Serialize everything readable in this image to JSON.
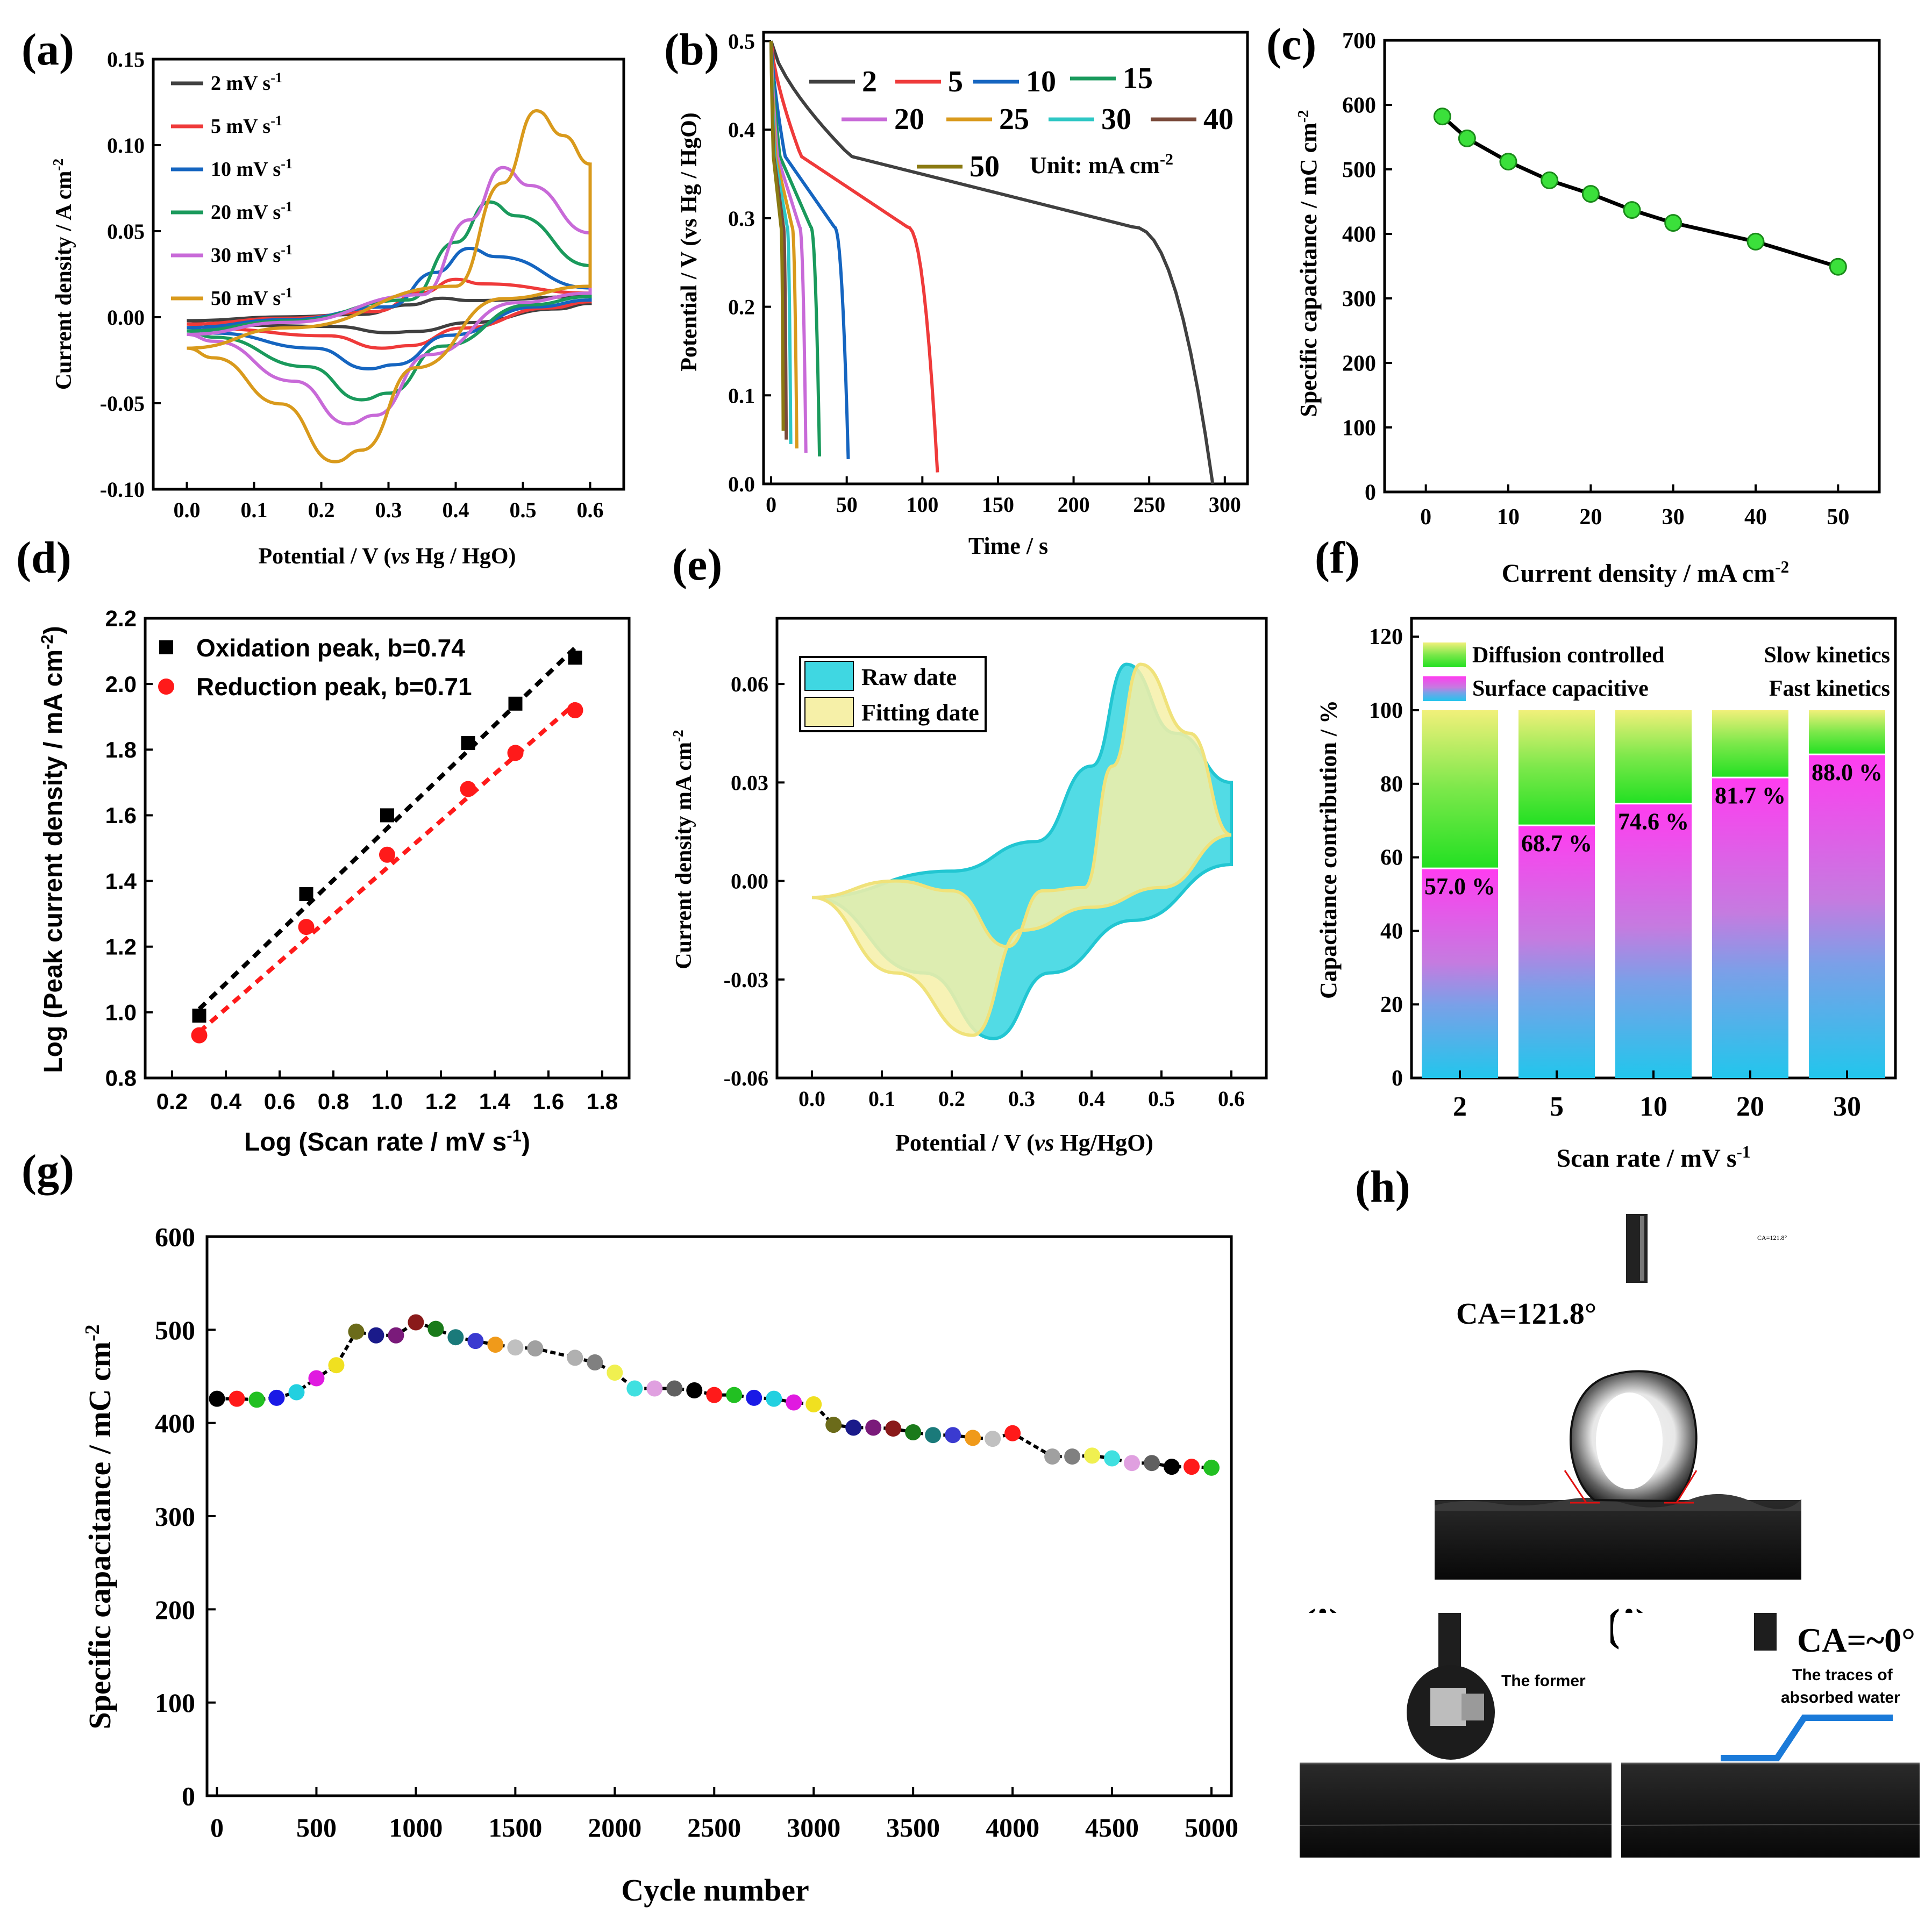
{
  "figure": {
    "panel_labels": [
      "(a)",
      "(b)",
      "(c)",
      "(d)",
      "(e)",
      "(f)",
      "(g)",
      "(h)",
      "(i)",
      "(j)"
    ]
  },
  "chart_data": [
    {
      "id": "a",
      "type": "line",
      "title": "",
      "xlabel_parts": [
        "Potential / V (",
        "vs",
        " Hg / HgO)"
      ],
      "ylabel": "Current density / A cm",
      "ylabel_sup": "-2",
      "xlim": [
        -0.05,
        0.65
      ],
      "ylim": [
        -0.1,
        0.15
      ],
      "xticks": [
        "0.0",
        "0.1",
        "0.2",
        "0.3",
        "0.4",
        "0.5",
        "0.6"
      ],
      "xtick_values": [
        0,
        0.1,
        0.2,
        0.3,
        0.4,
        0.5,
        0.6
      ],
      "yticks": [
        "-0.10",
        "-0.05",
        "0.00",
        "0.05",
        "0.10",
        "0.15"
      ],
      "ytick_values": [
        -0.1,
        -0.05,
        0.0,
        0.05,
        0.1,
        0.15
      ],
      "legend_position": "top-left",
      "unit_suffix": " mV s",
      "unit_sup": "-1",
      "series": [
        {
          "name": "2",
          "color": "#404040",
          "ox_peak": [
            0.38,
            0.011
          ],
          "red_peak": [
            0.3,
            -0.009
          ],
          "end_upper": 0.012,
          "end_lower": 0.008,
          "start": -0.002
        },
        {
          "name": "5",
          "color": "#ef3a3a",
          "ox_peak": [
            0.4,
            0.022
          ],
          "red_peak": [
            0.29,
            -0.018
          ],
          "end_upper": 0.014,
          "end_lower": 0.009,
          "start": -0.004
        },
        {
          "name": "10",
          "color": "#1565c0",
          "ox_peak": [
            0.42,
            0.04
          ],
          "red_peak": [
            0.27,
            -0.03
          ],
          "end_upper": 0.017,
          "end_lower": 0.01,
          "start": -0.006
        },
        {
          "name": "20",
          "color": "#1a9a5c",
          "ox_peak": [
            0.45,
            0.067
          ],
          "red_peak": [
            0.26,
            -0.048
          ],
          "end_upper": 0.03,
          "end_lower": 0.012,
          "start": -0.008
        },
        {
          "name": "30",
          "color": "#c86ad8",
          "ox_peak": [
            0.47,
            0.087
          ],
          "red_peak": [
            0.24,
            -0.062
          ],
          "end_upper": 0.049,
          "end_lower": 0.014,
          "start": -0.01
        },
        {
          "name": "50",
          "color": "#d99a1c",
          "ox_peak": [
            0.52,
            0.12
          ],
          "red_peak": [
            0.22,
            -0.084
          ],
          "end_upper": 0.089,
          "end_lower": 0.018,
          "start": -0.018
        }
      ]
    },
    {
      "id": "b",
      "type": "line",
      "xlabel": "Time / s",
      "ylabel": "Potential  / V (vs Hg / HgO)",
      "xlim": [
        -5,
        315
      ],
      "ylim": [
        0,
        0.51
      ],
      "xticks": [
        "0",
        "50",
        "100",
        "150",
        "200",
        "250",
        "300"
      ],
      "xtick_values": [
        0,
        50,
        100,
        150,
        200,
        250,
        300
      ],
      "yticks": [
        "0.0",
        "0.1",
        "0.2",
        "0.3",
        "0.4",
        "0.5"
      ],
      "ytick_values": [
        0,
        0.1,
        0.2,
        0.3,
        0.4,
        0.5
      ],
      "unit_note": "Unit: mA cm",
      "unit_note_sup": "-2",
      "legend_position": "top",
      "series": [
        {
          "name": "2",
          "color": "#404040",
          "end_time": 292,
          "end_v": 0.0
        },
        {
          "name": "5",
          "color": "#ef3a3a",
          "end_time": 110,
          "end_v": 0.013
        },
        {
          "name": "10",
          "color": "#1565c0",
          "end_time": 51,
          "end_v": 0.028
        },
        {
          "name": "15",
          "color": "#1a9a5c",
          "end_time": 32,
          "end_v": 0.031
        },
        {
          "name": "20",
          "color": "#c86ad8",
          "end_time": 23,
          "end_v": 0.035
        },
        {
          "name": "25",
          "color": "#d99a1c",
          "end_time": 17,
          "end_v": 0.04
        },
        {
          "name": "30",
          "color": "#2ec7c4",
          "end_time": 13,
          "end_v": 0.045
        },
        {
          "name": "40",
          "color": "#7a4a3a",
          "end_time": 10,
          "end_v": 0.05
        },
        {
          "name": "50",
          "color": "#8a7a12",
          "end_time": 8,
          "end_v": 0.06
        }
      ]
    },
    {
      "id": "c",
      "type": "line",
      "xlabel": "Current density / mA cm",
      "xlabel_sup": "-2",
      "ylabel": "Specific capacitance / mC cm",
      "ylabel_sup": "-2",
      "xlim": [
        -5,
        55
      ],
      "ylim": [
        0,
        700
      ],
      "xticks": [
        "0",
        "10",
        "20",
        "30",
        "40",
        "50"
      ],
      "xtick_values": [
        0,
        10,
        20,
        30,
        40,
        50
      ],
      "yticks": [
        "0",
        "100",
        "200",
        "300",
        "400",
        "500",
        "600",
        "700"
      ],
      "ytick_values": [
        0,
        100,
        200,
        300,
        400,
        500,
        600,
        700
      ],
      "x": [
        2,
        5,
        10,
        15,
        20,
        25,
        30,
        40,
        50
      ],
      "y": [
        582,
        548,
        512,
        483,
        462,
        437,
        417,
        388,
        349
      ],
      "marker_color": "#3be03b",
      "line_color": "#000000"
    },
    {
      "id": "d",
      "type": "scatter",
      "xlabel": "Log (Scan rate / mV s",
      "xlabel_sup": "-1",
      "xlabel_close": ")",
      "ylabel": "Log (Peak current density / mA cm",
      "ylabel_sup": "-2",
      "ylabel_close": ")",
      "xlim": [
        0.1,
        1.9
      ],
      "ylim": [
        0.8,
        2.2
      ],
      "xticks": [
        "0.2",
        "0.4",
        "0.6",
        "0.8",
        "1.0",
        "1.2",
        "1.4",
        "1.6",
        "1.8"
      ],
      "xtick_values": [
        0.2,
        0.4,
        0.6,
        0.8,
        1.0,
        1.2,
        1.4,
        1.6,
        1.8
      ],
      "yticks": [
        "0.8",
        "1.0",
        "1.2",
        "1.4",
        "1.6",
        "1.8",
        "2.0",
        "2.2"
      ],
      "ytick_values": [
        0.8,
        1.0,
        1.2,
        1.4,
        1.6,
        1.8,
        2.0,
        2.2
      ],
      "legend_position": "top-left",
      "series": [
        {
          "name": "Oxidation peak, b=0.74",
          "color": "#000000",
          "text_color": "#000000",
          "marker": "square",
          "x": [
            0.301,
            0.699,
            1.0,
            1.301,
            1.477,
            1.699
          ],
          "y": [
            0.99,
            1.36,
            1.6,
            1.82,
            1.94,
            2.08
          ],
          "fit": [
            [
              0.301,
              1.01
            ],
            [
              1.699,
              2.11
            ]
          ]
        },
        {
          "name": "Reduction peak, b=0.71",
          "color": "#ff1a1a",
          "text_color": "#ff1a1a",
          "marker": "circle",
          "x": [
            0.301,
            0.699,
            1.0,
            1.301,
            1.477,
            1.699
          ],
          "y": [
            0.93,
            1.26,
            1.48,
            1.68,
            1.79,
            1.92
          ],
          "fit": [
            [
              0.301,
              0.94
            ],
            [
              1.699,
              1.94
            ]
          ]
        }
      ]
    },
    {
      "id": "e",
      "type": "area",
      "xlabel_parts": [
        "Potential / V (",
        "vs",
        " Hg/HgO)"
      ],
      "ylabel": "Current density mA cm",
      "ylabel_sup": "-2",
      "xlim": [
        -0.05,
        0.65
      ],
      "ylim": [
        -0.06,
        0.08
      ],
      "xticks": [
        "0.0",
        "0.1",
        "0.2",
        "0.3",
        "0.4",
        "0.5",
        "0.6"
      ],
      "xtick_values": [
        0,
        0.1,
        0.2,
        0.3,
        0.4,
        0.5,
        0.6
      ],
      "yticks": [
        "-0.06",
        "-0.03",
        "0.00",
        "0.03",
        "0.06"
      ],
      "ytick_values": [
        -0.06,
        -0.03,
        0.0,
        0.03,
        0.06
      ],
      "legend_position": "top-left",
      "series": [
        {
          "name": "Raw date",
          "color": "#3fd7e2",
          "stroke": "#22c6d2"
        },
        {
          "name": "Fitting date",
          "color": "#f6f0a8",
          "stroke": "#f0e27a"
        }
      ]
    },
    {
      "id": "f",
      "type": "bar",
      "xlabel": "Scan rate / mV s",
      "xlabel_sup": "-1",
      "ylabel": "Capacitance contribution / %",
      "categories": [
        "2",
        "5",
        "10",
        "20",
        "30"
      ],
      "ylim": [
        0,
        125
      ],
      "yticks": [
        "0",
        "20",
        "40",
        "60",
        "80",
        "100",
        "120"
      ],
      "ytick_values": [
        0,
        20,
        40,
        60,
        80,
        100,
        120
      ],
      "series": [
        {
          "name": "Surface capacitive",
          "values": [
            57.0,
            68.7,
            74.6,
            81.7,
            88.0
          ]
        },
        {
          "name": "Diffusion controlled",
          "values": [
            43.0,
            31.3,
            25.4,
            18.3,
            12.0
          ]
        }
      ],
      "bar_labels": [
        "57.0 %",
        "68.7 %",
        "74.6 %",
        "81.7 %",
        "88.0 %"
      ],
      "legend": [
        {
          "text": "Diffusion controlled",
          "color": "#1a2fb8"
        },
        {
          "text": "Surface capacitive",
          "color": "#ff4f5e"
        }
      ],
      "notes": [
        {
          "text": "Slow kinetics",
          "color": "#1a2fb8"
        },
        {
          "text": "Fast kinetics",
          "color": "#ff4f5e"
        }
      ],
      "colors": {
        "diffusion_top": "#f1f07a",
        "diffusion_bottom": "#22e022",
        "surface_top": "#ff3cf0",
        "surface_mid": "#c57be0",
        "surface_bottom": "#22c6ec"
      }
    },
    {
      "id": "g",
      "type": "line",
      "xlabel": "Cycle number",
      "ylabel": "Specific capacitance / mC cm",
      "ylabel_sup": "-2",
      "xlim": [
        -50,
        5100
      ],
      "ylim": [
        0,
        600
      ],
      "xticks": [
        "0",
        "500",
        "1000",
        "1500",
        "2000",
        "2500",
        "3000",
        "3500",
        "4000",
        "4500",
        "5000"
      ],
      "xtick_values": [
        0,
        500,
        1000,
        1500,
        2000,
        2500,
        3000,
        3500,
        4000,
        4500,
        5000
      ],
      "yticks": [
        "0",
        "100",
        "200",
        "300",
        "400",
        "500",
        "600"
      ],
      "ytick_values": [
        0,
        100,
        200,
        300,
        400,
        500,
        600
      ],
      "x": [
        0,
        100,
        200,
        300,
        400,
        500,
        600,
        700,
        800,
        900,
        1000,
        1100,
        1200,
        1300,
        1400,
        1500,
        1600,
        1800,
        1900,
        2000,
        2100,
        2200,
        2300,
        2400,
        2500,
        2600,
        2700,
        2800,
        2900,
        3000,
        3100,
        3200,
        3300,
        3400,
        3500,
        3600,
        3700,
        3800,
        3900,
        4000,
        4200,
        4300,
        4400,
        4500,
        4600,
        4700,
        4800,
        4900,
        5000
      ],
      "y": [
        426,
        426,
        425,
        427,
        433,
        448,
        462,
        498,
        494,
        494,
        508,
        501,
        492,
        488,
        484,
        481,
        480,
        470,
        465,
        454,
        437,
        437,
        437,
        435,
        430,
        430,
        427,
        426,
        422,
        420,
        398,
        395,
        395,
        394,
        390,
        387,
        387,
        384,
        383,
        389,
        364,
        364,
        365,
        362,
        357,
        357,
        353,
        353,
        352
      ],
      "marker_colors": [
        "#000000",
        "#ff1a1a",
        "#22c022",
        "#1a1ae6",
        "#22d0e0",
        "#e01ae0",
        "#f0e020",
        "#6b6b1a",
        "#1a1a8a",
        "#7a1a7a",
        "#8a1a1a",
        "#1a7a1a",
        "#1a7a7a",
        "#3a3ad0",
        "#f09a1a",
        "#c0c0c0",
        "#a0a0a0",
        "#b0b0b0",
        "#808080",
        "#f0f050",
        "#40e0e0",
        "#e0a0e0",
        "#606060",
        "#000000",
        "#ff1a1a",
        "#22c022",
        "#1a1ae6",
        "#22d0e0",
        "#e01ae0",
        "#f0e020",
        "#6b6b1a",
        "#1a1a8a",
        "#7a1a7a",
        "#8a1a1a",
        "#1a7a1a",
        "#1a7a7a",
        "#3a3ad0",
        "#f09a1a",
        "#c0c0c0",
        "#ff1a1a",
        "#a0a0a0",
        "#808080",
        "#f0f050",
        "#40e0e0",
        "#e0a0e0",
        "#606060",
        "#000000",
        "#ff1a1a",
        "#22c022"
      ]
    }
  ],
  "photos": {
    "h": {
      "label": "(h)",
      "ca_text": "CA=121.8°",
      "tiny_text": "CA=121.8°"
    },
    "i": {
      "label": "(i)",
      "note": "The former",
      "note_color": "#1a7ad9"
    },
    "j": {
      "label": "(j)",
      "ca_text": "CA=~0°",
      "note_line1": "The traces of",
      "note_line2": "absorbed water",
      "note_color": "#1a7ad9"
    }
  }
}
